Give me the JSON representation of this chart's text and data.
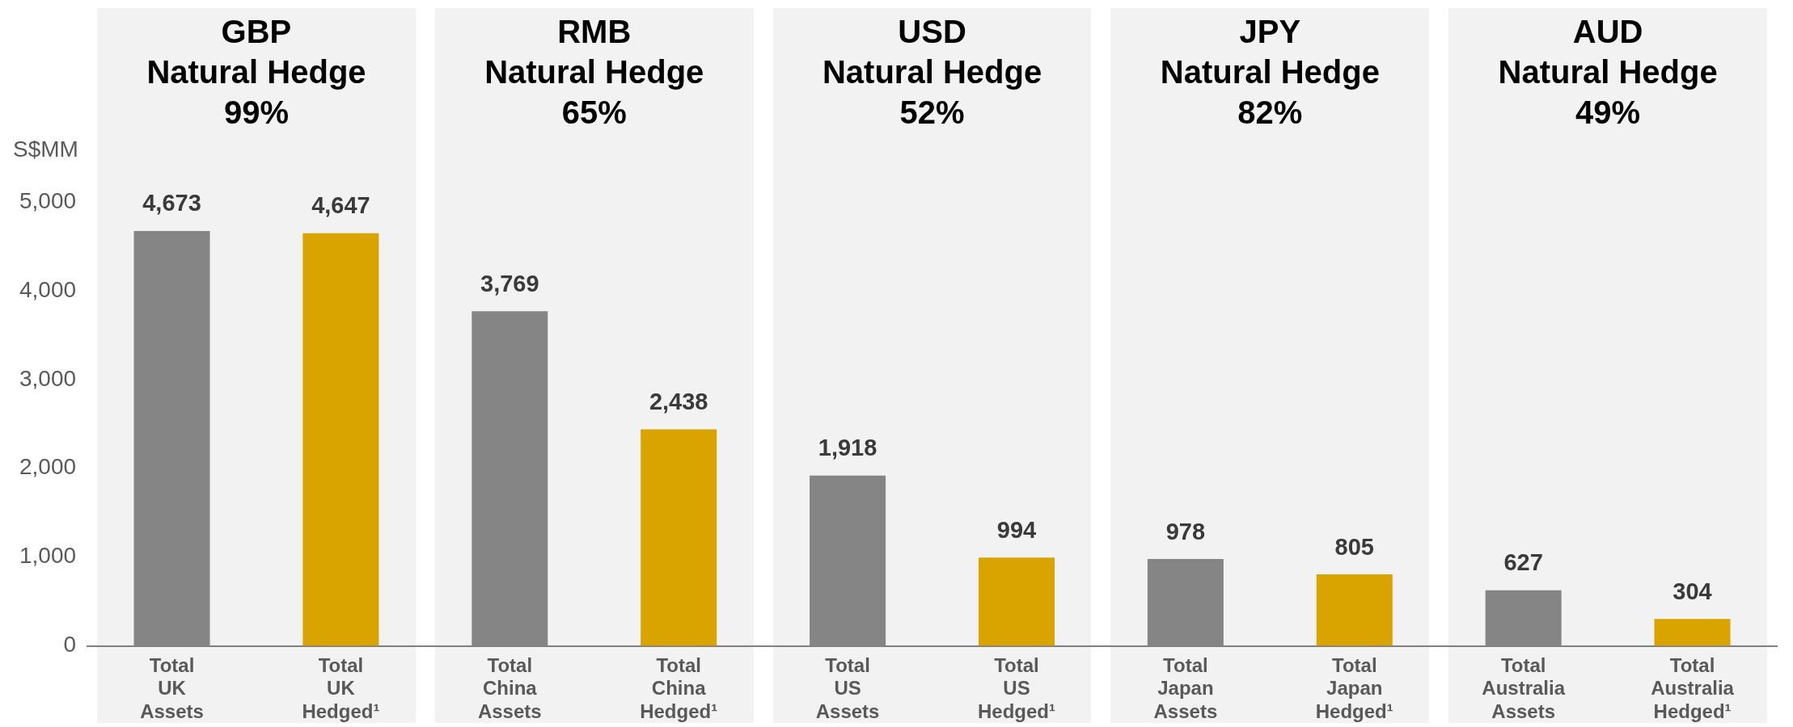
{
  "chart_data": {
    "type": "bar",
    "ylabel": "S$MM",
    "categories": [
      "Total UK Assets",
      "Total UK Hedged¹",
      "Total China Assets",
      "Total China Hedged¹",
      "Total US Assets",
      "Total US Hedged¹",
      "Total Japan Assets",
      "Total Japan Hedged¹",
      "Total Australia Assets",
      "Total Australia Hedged¹"
    ],
    "values": [
      4673,
      4647,
      3769,
      2438,
      1918,
      994,
      978,
      805,
      627,
      304
    ],
    "colors": [
      "#858585",
      "#d9a300",
      "#858585",
      "#d9a300",
      "#858585",
      "#d9a300",
      "#858585",
      "#d9a300",
      "#858585",
      "#d9a300"
    ],
    "value_labels": [
      "4,673",
      "4,647",
      "3,769",
      "2,438",
      "1,918",
      "994",
      "978",
      "805",
      "627",
      "304"
    ],
    "ylim": [
      0,
      5000
    ],
    "yticks": [
      0,
      {
        "value": 1000,
        "label": "1,000"
      },
      {
        "value": 2000,
        "label": "2,000"
      },
      {
        "value": 3000,
        "label": "3,000"
      },
      {
        "value": 4000,
        "label": "4,000"
      },
      {
        "value": 5000,
        "label": "5,000"
      }
    ],
    "grid": false,
    "legend": false,
    "annotations": [
      "GBP\nNatural Hedge\n99%",
      "RMB\nNatural Hedge\n65%",
      "USD\nNatural Hedge\n52%",
      "JPY\nNatural Hedge\n82%",
      "AUD\nNatural Hedge\n49%"
    ]
  }
}
